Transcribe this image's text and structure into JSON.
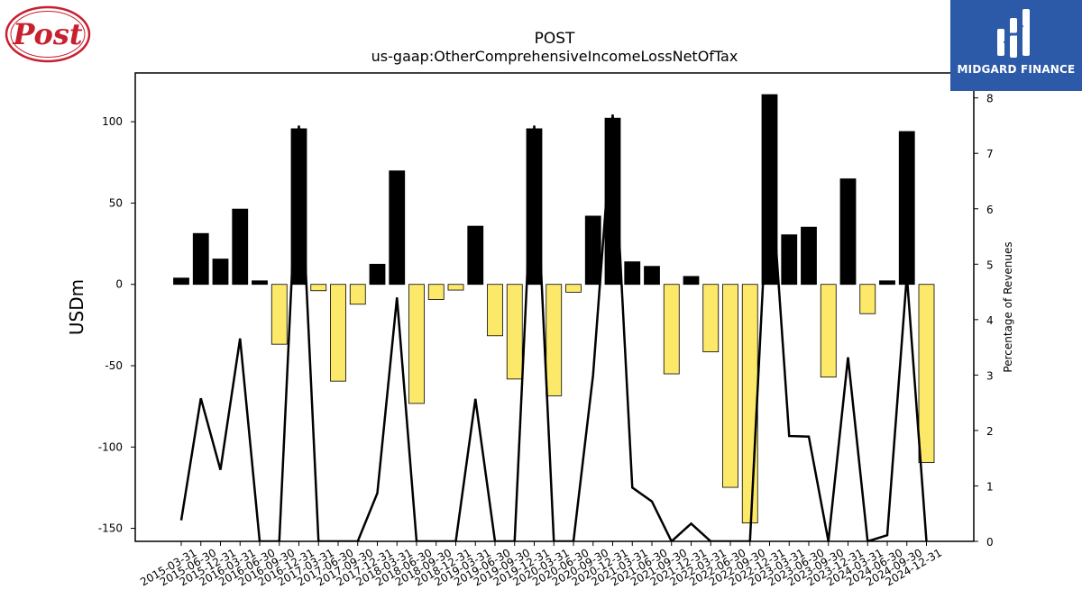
{
  "logo_left": {
    "text": "Post",
    "color": "#c8202f"
  },
  "logo_right": {
    "text": "MIDGARD FINANCE",
    "background": "#2d5aa8"
  },
  "chart_data": {
    "type": "bar",
    "title": "POST",
    "subtitle": "us-gaap:OtherComprehensiveIncomeLossNetOfTax",
    "ylabel": "USDm",
    "y2label": "Percentage of Revenues",
    "ylim": [
      -158,
      130
    ],
    "y2lim": [
      0,
      8.45
    ],
    "yticks": [
      100,
      50,
      0,
      -50,
      -100,
      -150
    ],
    "y2ticks": [
      0,
      1,
      2,
      3,
      4,
      5,
      6,
      7,
      8
    ],
    "grid": false,
    "colors": {
      "positive": "#000000",
      "negative": "#fce96a",
      "line": "#000000"
    },
    "categories": [
      "2015-03-31",
      "2015-06-30",
      "2015-12-31",
      "2016-03-31",
      "2016-06-30",
      "2016-09-30",
      "2016-12-31",
      "2017-03-31",
      "2017-06-30",
      "2017-09-30",
      "2017-12-31",
      "2018-03-31",
      "2018-06-30",
      "2018-09-30",
      "2018-12-31",
      "2019-03-31",
      "2019-06-30",
      "2019-09-30",
      "2019-12-31",
      "2020-03-31",
      "2020-06-30",
      "2020-09-30",
      "2020-12-31",
      "2021-03-31",
      "2021-06-30",
      "2021-09-30",
      "2021-12-31",
      "2022-03-31",
      "2022-06-30",
      "2022-09-30",
      "2022-12-31",
      "2023-03-31",
      "2023-06-30",
      "2023-09-30",
      "2023-12-31",
      "2024-03-31",
      "2024-06-30",
      "2024-09-30",
      "2024-12-31"
    ],
    "series": [
      {
        "kind": "bar",
        "values": [
          3.9,
          31.3,
          15.6,
          46.3,
          2.2,
          -36.8,
          95.7,
          -3.9,
          -59.5,
          -12.2,
          12.4,
          69.8,
          -73.2,
          -9.3,
          -3.5,
          35.8,
          -31.6,
          -58.2,
          95.7,
          -68.5,
          -4.8,
          42.0,
          102.2,
          13.9,
          11.1,
          -55.0,
          4.9,
          -41.5,
          -124.8,
          -146.7,
          116.7,
          30.5,
          35.2,
          -57.0,
          64.9,
          -18.0,
          2.2,
          94.0,
          -109.6
        ]
      },
      {
        "kind": "line",
        "axis": "right",
        "values": [
          0.38,
          2.58,
          1.29,
          3.66,
          0.0,
          0.0,
          7.5,
          0.0,
          0.0,
          0.0,
          0.87,
          4.4,
          0.0,
          0.0,
          0.0,
          2.57,
          0.0,
          0.0,
          7.5,
          0.0,
          0.0,
          3.0,
          7.7,
          0.97,
          0.72,
          0.0,
          0.32,
          0.0,
          0.0,
          0.0,
          7.0,
          1.9,
          1.89,
          0.0,
          3.32,
          0.0,
          0.11,
          4.8,
          0.0
        ]
      }
    ]
  }
}
